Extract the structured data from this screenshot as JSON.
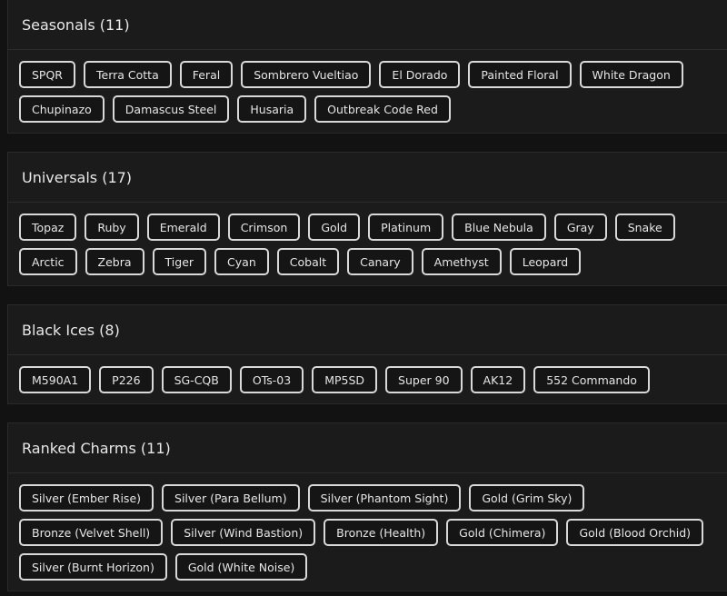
{
  "sections": [
    {
      "title": "Seasonals (11)",
      "items": [
        "SPQR",
        "Terra Cotta",
        "Feral",
        "Sombrero Vueltiao",
        "El Dorado",
        "Painted Floral",
        "White Dragon",
        "Chupinazo",
        "Damascus Steel",
        "Husaria",
        "Outbreak Code Red"
      ]
    },
    {
      "title": "Universals (17)",
      "items": [
        "Topaz",
        "Ruby",
        "Emerald",
        "Crimson",
        "Gold",
        "Platinum",
        "Blue Nebula",
        "Gray",
        "Snake",
        "Arctic",
        "Zebra",
        "Tiger",
        "Cyan",
        "Cobalt",
        "Canary",
        "Amethyst",
        "Leopard"
      ]
    },
    {
      "title": "Black Ices (8)",
      "items": [
        "M590A1",
        "P226",
        "SG-CQB",
        "OTs-03",
        "MP5SD",
        "Super 90",
        "AK12",
        "552 Commando"
      ]
    },
    {
      "title": "Ranked Charms (11)",
      "items": [
        "Silver (Ember Rise)",
        "Silver (Para Bellum)",
        "Silver (Phantom Sight)",
        "Gold (Grim Sky)",
        "Bronze (Velvet Shell)",
        "Silver (Wind Bastion)",
        "Bronze (Health)",
        "Gold (Chimera)",
        "Gold (Blood Orchid)",
        "Silver (Burnt Horizon)",
        "Gold (White Noise)"
      ]
    }
  ]
}
